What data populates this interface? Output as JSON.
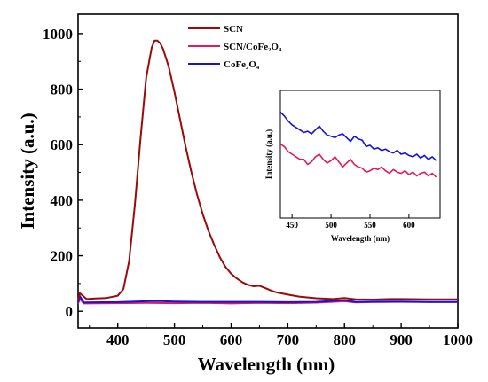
{
  "chart_data": [
    {
      "type": "line",
      "xlabel": "Wavelength (nm)",
      "ylabel": "Intensity (a.u.)",
      "xlim": [
        330,
        1000
      ],
      "ylim": [
        -60,
        1070
      ],
      "x_ticks": [
        "400",
        "500",
        "600",
        "700",
        "800",
        "900",
        "1000"
      ],
      "y_ticks": [
        "0",
        "200",
        "400",
        "600",
        "800",
        "1000"
      ],
      "legend_position": "top-center",
      "series": [
        {
          "name": "SCN",
          "color": "#9b0a0a",
          "x": [
            330,
            333,
            345,
            360,
            380,
            400,
            410,
            420,
            430,
            440,
            450,
            460,
            465,
            470,
            475,
            480,
            490,
            500,
            510,
            520,
            530,
            540,
            550,
            560,
            570,
            580,
            590,
            600,
            610,
            620,
            630,
            640,
            650,
            660,
            670,
            680,
            700,
            720,
            750,
            780,
            800,
            820,
            850,
            880,
            900,
            950,
            1000
          ],
          "y": [
            40,
            65,
            44,
            46,
            48,
            56,
            80,
            180,
            380,
            620,
            840,
            950,
            975,
            975,
            965,
            945,
            880,
            790,
            690,
            590,
            500,
            420,
            350,
            290,
            240,
            195,
            160,
            135,
            118,
            104,
            95,
            90,
            92,
            84,
            75,
            68,
            60,
            53,
            47,
            44,
            48,
            43,
            42,
            44,
            44,
            43,
            43
          ]
        },
        {
          "name": "SCN/CoFe₂O₄",
          "color": "#e11a5a",
          "x": [
            330,
            333,
            340,
            400,
            450,
            500,
            550,
            600,
            650,
            700,
            750,
            800,
            820,
            850,
            900,
            950,
            1000
          ],
          "y": [
            28,
            45,
            28,
            29,
            30,
            29,
            30,
            28,
            30,
            29,
            31,
            36,
            32,
            33,
            34,
            33,
            33
          ]
        },
        {
          "name": "CoFe₂O₄",
          "color": "#1414d8",
          "x": [
            330,
            333,
            340,
            400,
            450,
            470,
            500,
            550,
            600,
            650,
            700,
            750,
            800,
            820,
            850,
            900,
            950,
            1000
          ],
          "y": [
            32,
            55,
            32,
            33,
            36,
            37,
            35,
            34,
            34,
            34,
            33,
            34,
            40,
            34,
            35,
            35,
            34,
            34
          ]
        }
      ]
    },
    {
      "type": "line",
      "xlabel": "Wavelength (nm)",
      "ylabel": "Intensity (a.u.)",
      "xlim": [
        435,
        640
      ],
      "ylim": [
        0,
        10
      ],
      "x_ticks": [
        "450",
        "500",
        "550",
        "600"
      ],
      "series": [
        {
          "color": "#1414d8",
          "x": [
            435,
            440,
            445,
            450,
            455,
            460,
            465,
            470,
            475,
            480,
            485,
            490,
            495,
            500,
            505,
            510,
            515,
            520,
            525,
            530,
            535,
            540,
            545,
            550,
            555,
            560,
            565,
            570,
            575,
            580,
            585,
            590,
            595,
            600,
            605,
            610,
            615,
            620,
            625,
            630,
            635
          ],
          "y": [
            8.3,
            8.0,
            7.6,
            7.3,
            7.1,
            6.9,
            6.7,
            6.8,
            6.6,
            6.9,
            7.2,
            6.8,
            6.5,
            6.4,
            6.3,
            6.5,
            6.6,
            6.3,
            6.0,
            6.4,
            6.2,
            6.1,
            5.6,
            5.7,
            5.4,
            5.5,
            5.3,
            5.4,
            5.2,
            5.1,
            5.3,
            5.0,
            5.1,
            4.9,
            4.8,
            5.0,
            4.7,
            4.9,
            4.6,
            4.8,
            4.5
          ]
        },
        {
          "color": "#e11a5a",
          "x": [
            435,
            440,
            445,
            450,
            455,
            460,
            465,
            470,
            475,
            480,
            485,
            490,
            495,
            500,
            505,
            510,
            515,
            520,
            525,
            530,
            535,
            540,
            545,
            550,
            555,
            560,
            565,
            570,
            575,
            580,
            585,
            590,
            595,
            600,
            605,
            610,
            615,
            620,
            625,
            630,
            635
          ],
          "y": [
            5.8,
            5.6,
            5.2,
            5.0,
            4.8,
            4.6,
            4.6,
            4.2,
            4.4,
            4.8,
            5.0,
            4.6,
            4.3,
            4.5,
            4.8,
            4.4,
            4.0,
            4.3,
            4.6,
            4.2,
            4.0,
            3.9,
            3.6,
            3.7,
            3.9,
            3.8,
            4.0,
            3.7,
            3.5,
            3.8,
            3.6,
            3.5,
            3.7,
            3.4,
            3.6,
            3.3,
            3.5,
            3.6,
            3.3,
            3.5,
            3.2
          ]
        }
      ]
    }
  ]
}
